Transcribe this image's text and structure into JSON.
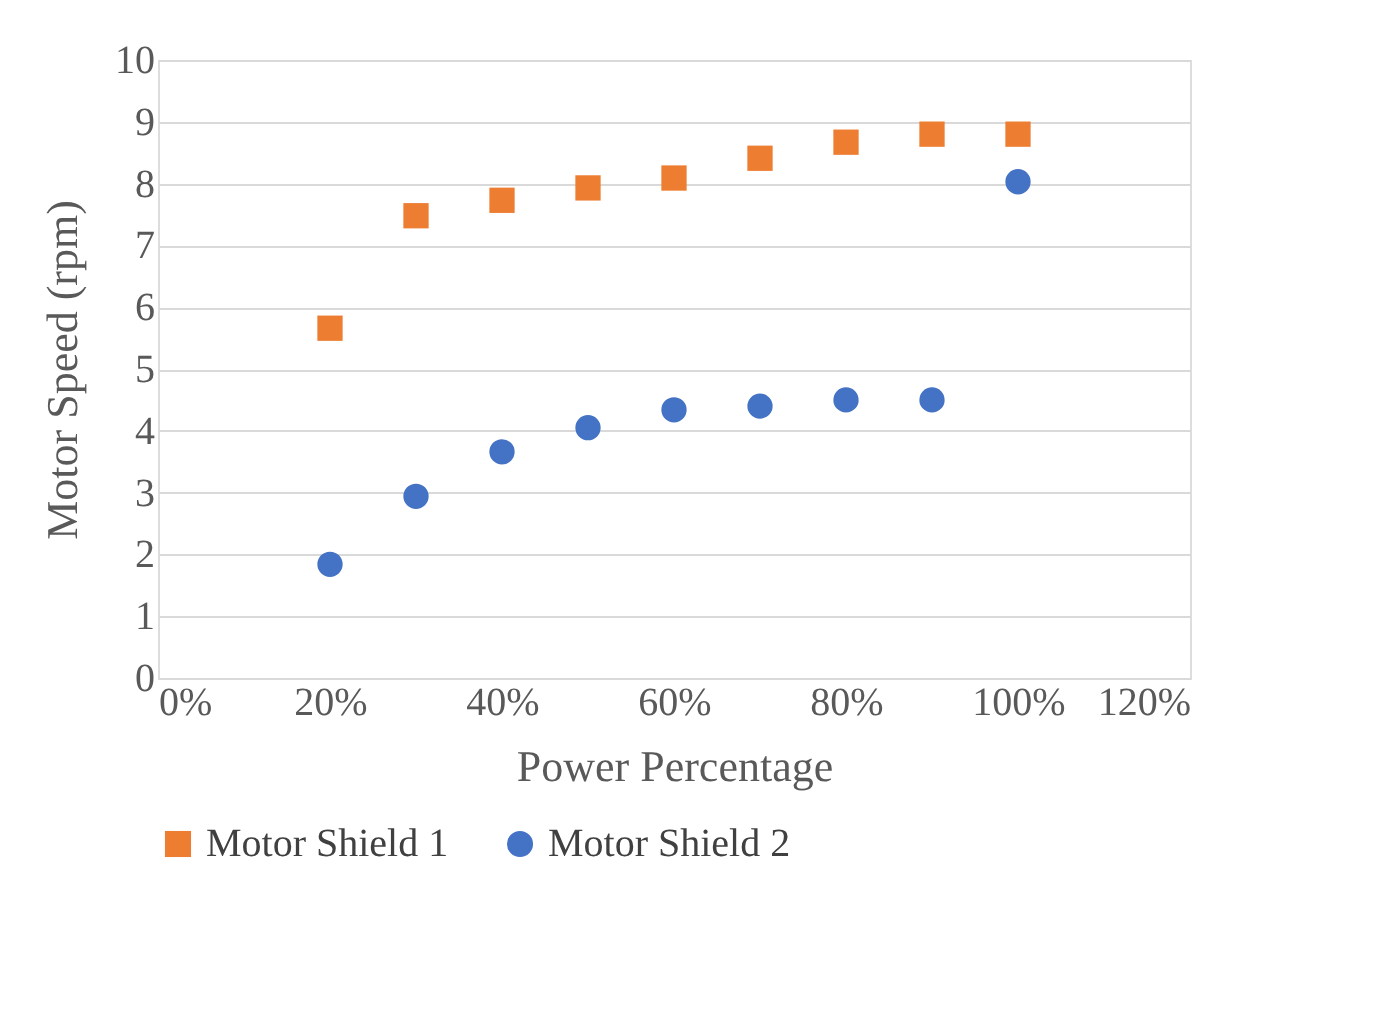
{
  "chart_data": {
    "type": "scatter",
    "xlabel": "Power Percentage",
    "ylabel": "Motor Speed (rpm)",
    "x": [
      0.2,
      0.3,
      0.4,
      0.5,
      0.6,
      0.7,
      0.8,
      0.9,
      1.0
    ],
    "series": [
      {
        "name": "Motor Shield 1",
        "color": "#ed7d31",
        "marker": "square",
        "values": [
          5.66,
          7.48,
          7.73,
          7.93,
          8.09,
          8.41,
          8.67,
          8.8,
          8.8
        ]
      },
      {
        "name": "Motor Shield 2",
        "color": "#4472c4",
        "marker": "circle",
        "values": [
          1.84,
          2.94,
          3.66,
          4.05,
          4.34,
          4.4,
          4.5,
          4.5,
          8.03
        ]
      }
    ],
    "xlim": [
      0,
      1.2
    ],
    "xticks": [
      {
        "value": 0,
        "label": "0%"
      },
      {
        "value": 0.2,
        "label": "20%"
      },
      {
        "value": 0.4,
        "label": "40%"
      },
      {
        "value": 0.6,
        "label": "60%"
      },
      {
        "value": 0.8,
        "label": "80%"
      },
      {
        "value": 1.0,
        "label": "100%"
      },
      {
        "value": 1.2,
        "label": "120%"
      }
    ],
    "ylim": [
      0,
      10
    ],
    "yticks": [
      0,
      1,
      2,
      3,
      4,
      5,
      6,
      7,
      8,
      9,
      10
    ],
    "grid": "y",
    "legend": "bottom"
  }
}
